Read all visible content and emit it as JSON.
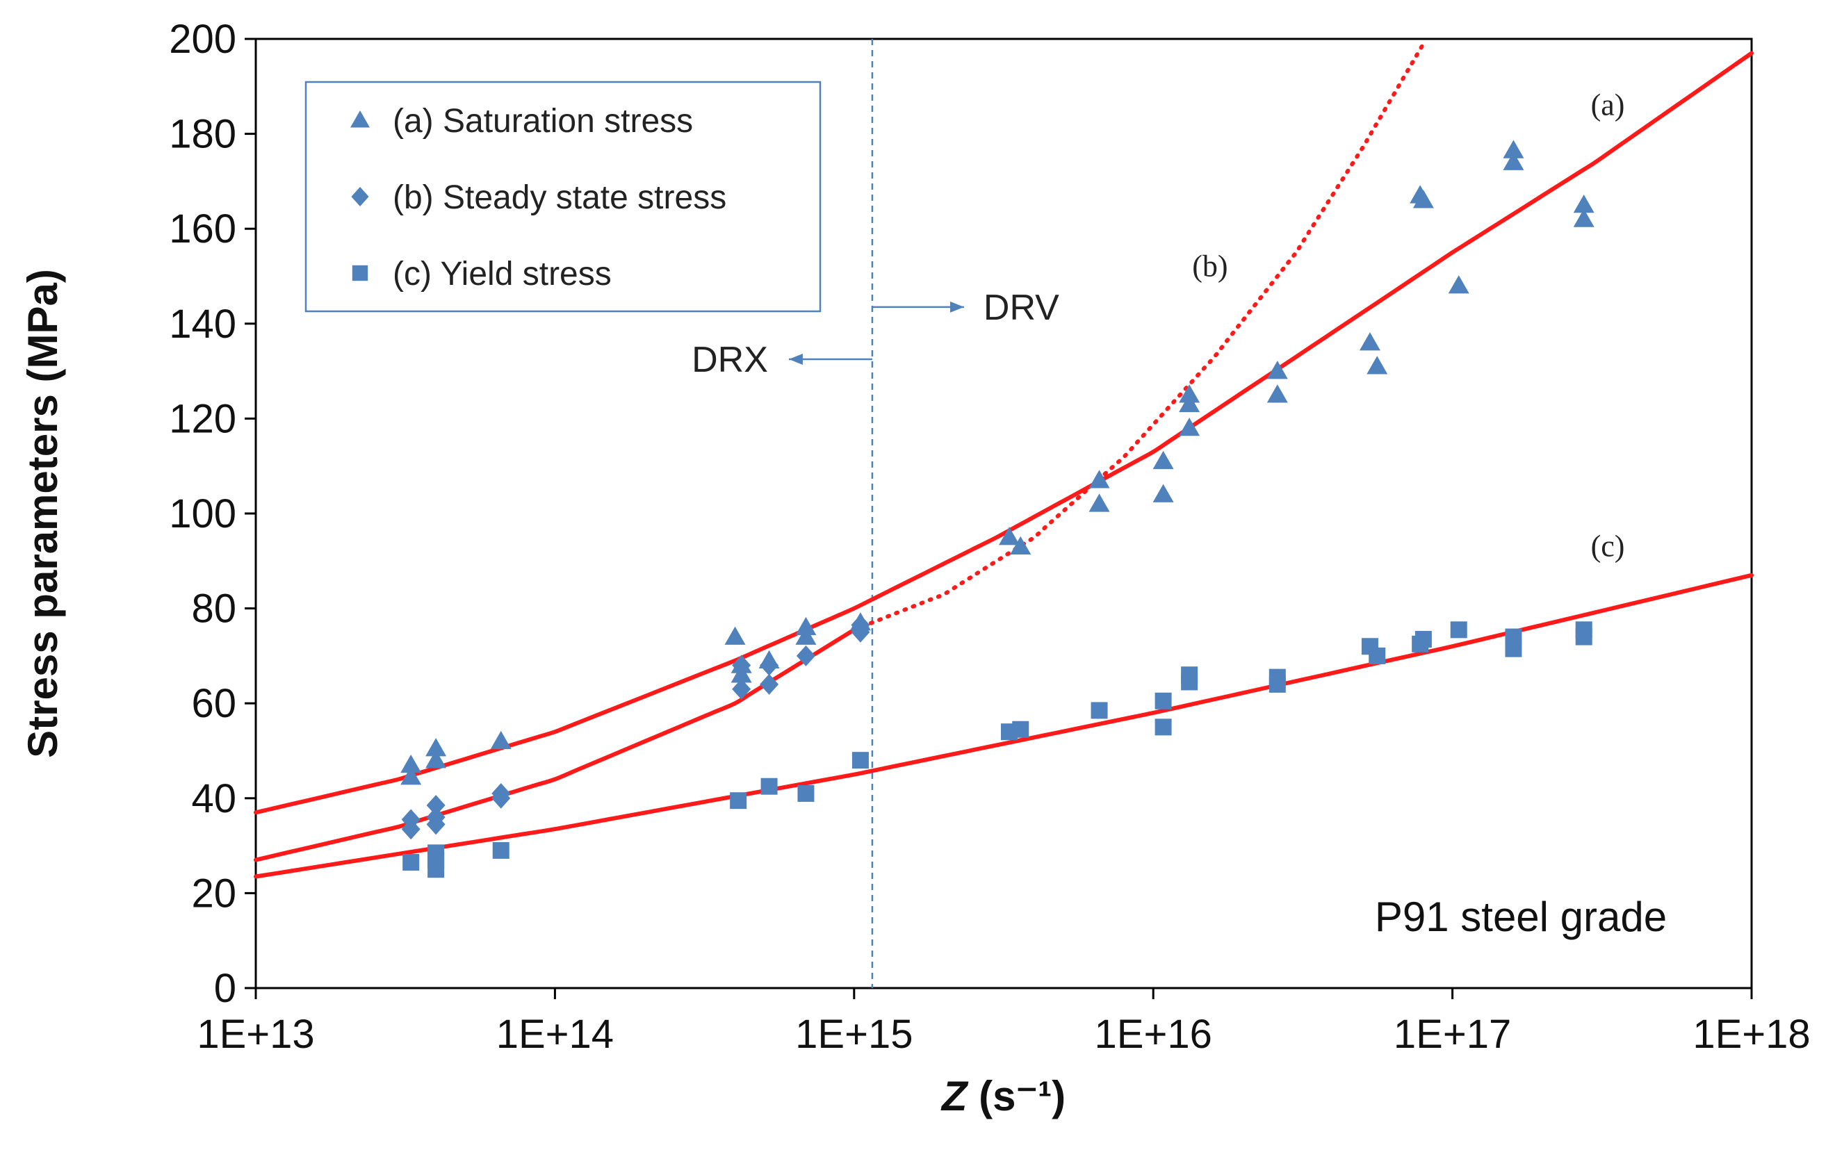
{
  "chart_data": {
    "type": "scatter",
    "title": "",
    "xlabel": "Z (s⁻¹)",
    "xlabel_main": "Z",
    "xlabel_unit": " (s⁻¹)",
    "ylabel": "Stress parameters  (MPa)",
    "x_scale": "log",
    "xlim": [
      10000000000000.0,
      1e+18
    ],
    "ylim": [
      0,
      200
    ],
    "x_ticks": [
      10000000000000.0,
      100000000000000.0,
      1000000000000000.0,
      1e+16,
      1e+17,
      1e+18
    ],
    "x_tick_labels": [
      "1E+13",
      "1E+14",
      "1E+15",
      "1E+16",
      "1E+17",
      "1E+18"
    ],
    "y_ticks": [
      0,
      20,
      40,
      60,
      80,
      100,
      120,
      140,
      160,
      180,
      200
    ],
    "y_tick_labels": [
      "0",
      "20",
      "40",
      "60",
      "80",
      "100",
      "120",
      "140",
      "160",
      "180",
      "200"
    ],
    "grid": false,
    "legend_position": "top-left",
    "colors": {
      "marker": "#4F81BD",
      "fit": "#FF1A1A",
      "divider": "#4F81BD",
      "axis": "#000000"
    },
    "series": [
      {
        "name": "(a) Saturation stress",
        "marker": "triangle",
        "points": [
          [
            33000000000000.0,
            44.5
          ],
          [
            33000000000000.0,
            47
          ],
          [
            40000000000000.0,
            48
          ],
          [
            40000000000000.0,
            50.5
          ],
          [
            66000000000000.0,
            52
          ],
          [
            400000000000000.0,
            74
          ],
          [
            420000000000000.0,
            68
          ],
          [
            420000000000000.0,
            66
          ],
          [
            520000000000000.0,
            69
          ],
          [
            690000000000000.0,
            76
          ],
          [
            690000000000000.0,
            74
          ],
          [
            1050000000000000.0,
            77
          ],
          [
            3300000000000000.0,
            95
          ],
          [
            3600000000000000.0,
            93
          ],
          [
            6600000000000000.0,
            107
          ],
          [
            6600000000000000.0,
            102
          ],
          [
            1.08e+16,
            111
          ],
          [
            1.08e+16,
            104
          ],
          [
            1.32e+16,
            125
          ],
          [
            1.32e+16,
            123
          ],
          [
            1.32e+16,
            118
          ],
          [
            2.6e+16,
            130
          ],
          [
            2.6e+16,
            125
          ],
          [
            5.3e+16,
            136
          ],
          [
            5.6e+16,
            131
          ],
          [
            7.8e+16,
            167
          ],
          [
            8e+16,
            166
          ],
          [
            1.05e+17,
            148
          ],
          [
            1.6e+17,
            176.5
          ],
          [
            1.6e+17,
            174
          ],
          [
            2.75e+17,
            165
          ],
          [
            2.75e+17,
            162
          ]
        ]
      },
      {
        "name": "(b) Steady state stress",
        "marker": "diamond",
        "points": [
          [
            33000000000000.0,
            33.5
          ],
          [
            33000000000000.0,
            35.5
          ],
          [
            40000000000000.0,
            38.5
          ],
          [
            40000000000000.0,
            34.5
          ],
          [
            40000000000000.0,
            36
          ],
          [
            66000000000000.0,
            41
          ],
          [
            66000000000000.0,
            40
          ],
          [
            420000000000000.0,
            63
          ],
          [
            420000000000000.0,
            68
          ],
          [
            520000000000000.0,
            64
          ],
          [
            520000000000000.0,
            68
          ],
          [
            690000000000000.0,
            70
          ],
          [
            1050000000000000.0,
            75
          ],
          [
            1050000000000000.0,
            76.5
          ]
        ]
      },
      {
        "name": "(c) Yield stress",
        "marker": "square",
        "points": [
          [
            33000000000000.0,
            26.5
          ],
          [
            40000000000000.0,
            25
          ],
          [
            40000000000000.0,
            27
          ],
          [
            40000000000000.0,
            28.5
          ],
          [
            66000000000000.0,
            29
          ],
          [
            410000000000000.0,
            39.5
          ],
          [
            520000000000000.0,
            42.5
          ],
          [
            690000000000000.0,
            41
          ],
          [
            1050000000000000.0,
            48
          ],
          [
            3300000000000000.0,
            54
          ],
          [
            3600000000000000.0,
            54.5
          ],
          [
            6600000000000000.0,
            58.5
          ],
          [
            1.08e+16,
            60.5
          ],
          [
            1.08e+16,
            55
          ],
          [
            1.32e+16,
            64.5
          ],
          [
            1.32e+16,
            66
          ],
          [
            2.6e+16,
            64
          ],
          [
            2.6e+16,
            65.5
          ],
          [
            5.3e+16,
            72
          ],
          [
            5.6e+16,
            70
          ],
          [
            7.8e+16,
            72.5
          ],
          [
            8e+16,
            73.5
          ],
          [
            1.05e+17,
            75.5
          ],
          [
            1.6e+17,
            71.5
          ],
          [
            1.6e+17,
            74
          ],
          [
            2.75e+17,
            74
          ],
          [
            2.75e+17,
            75.5
          ]
        ]
      }
    ],
    "fits": [
      {
        "name": "(a)",
        "style": "solid",
        "points": [
          [
            10000000000000.0,
            37
          ],
          [
            30000000000000.0,
            44
          ],
          [
            100000000000000.0,
            54
          ],
          [
            400000000000000.0,
            69
          ],
          [
            1000000000000000.0,
            80
          ],
          [
            3000000000000000.0,
            95
          ],
          [
            1e+16,
            113
          ],
          [
            3e+16,
            133
          ],
          [
            1e+17,
            155
          ],
          [
            3e+17,
            174
          ],
          [
            1e+18,
            197
          ]
        ]
      },
      {
        "name": "(b)",
        "style": "solid",
        "points": [
          [
            10000000000000.0,
            27
          ],
          [
            30000000000000.0,
            34
          ],
          [
            100000000000000.0,
            44
          ],
          [
            400000000000000.0,
            60
          ],
          [
            1000000000000000.0,
            75.5
          ]
        ]
      },
      {
        "name": "(b) extrapolation",
        "style": "dotted",
        "points": [
          [
            1000000000000000.0,
            75.5
          ],
          [
            2000000000000000.0,
            83
          ],
          [
            4000000000000000.0,
            95
          ],
          [
            8000000000000000.0,
            112
          ],
          [
            1.6e+16,
            133
          ],
          [
            3e+16,
            155
          ],
          [
            5e+16,
            177
          ],
          [
            8e+16,
            199
          ]
        ]
      },
      {
        "name": "(c)",
        "style": "solid",
        "points": [
          [
            10000000000000.0,
            23.5
          ],
          [
            100000000000000.0,
            33.5
          ],
          [
            1000000000000000.0,
            45
          ],
          [
            1e+16,
            58
          ],
          [
            1e+17,
            72
          ],
          [
            1e+18,
            87
          ]
        ]
      }
    ],
    "divider_x": 1150000000000000.0,
    "annotations": {
      "drx": "DRX",
      "drv": "DRV",
      "fit_a": "(a)",
      "fit_b": "(b)",
      "fit_c": "(c)",
      "material": "P91  steel  grade"
    }
  }
}
